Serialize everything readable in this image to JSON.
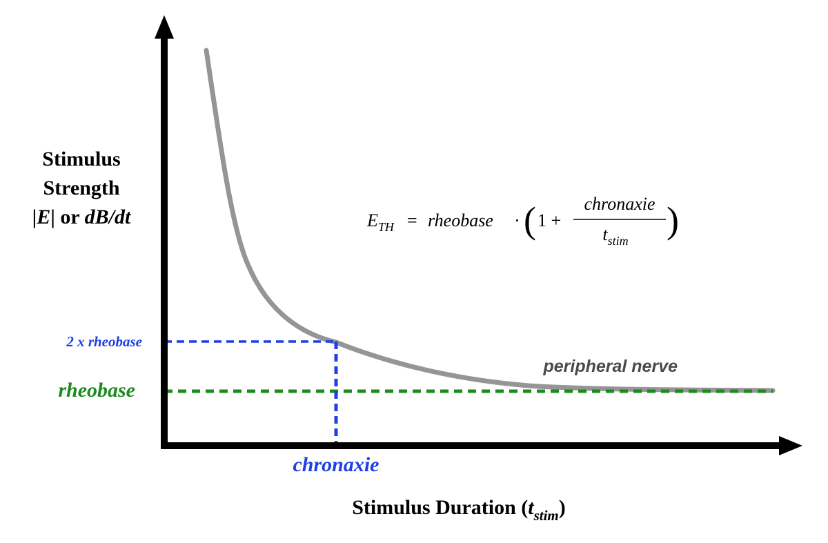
{
  "y_axis_label": {
    "line1": "Stimulus",
    "line2": "Strength",
    "line3_part1": "|",
    "line3_var_e": "E",
    "line3_part2": "| or ",
    "line3_var_dbdt": "dB/dt"
  },
  "x_axis_label": {
    "text": "Stimulus Duration (",
    "var": "t",
    "sub": "stim",
    "close": ")"
  },
  "curve_label": "peripheral nerve",
  "rheobase_label": "rheobase",
  "two_rheobase_label": "2 x rheobase",
  "chronaxie_label": "chronaxie",
  "formula": {
    "lhs_var": "E",
    "lhs_sub": "TH",
    "equals": "=",
    "rheobase": "rheobase",
    "dot": "·",
    "open_paren": "(",
    "one_plus": "1 +",
    "numerator": "chronaxie",
    "denominator_var": "t",
    "denominator_sub": "stim",
    "close_paren": ")"
  },
  "colors": {
    "axis": "#000000",
    "curve": "#959595",
    "rheobase": "#1d8a1d",
    "chronaxie": "#1f3fe6",
    "curve_label": "#4a4a4a"
  }
}
